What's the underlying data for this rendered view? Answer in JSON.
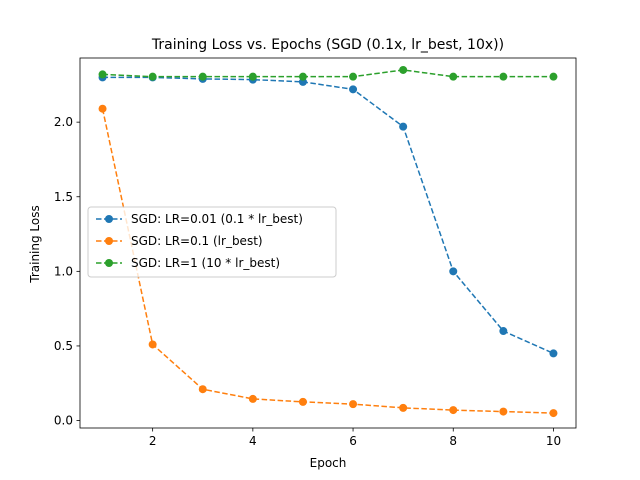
{
  "chart_data": {
    "type": "line",
    "title": "Training Loss vs. Epochs (SGD (0.1x, lr_best, 10x))",
    "xlabel": "Epoch",
    "ylabel": "Training Loss",
    "xlim": [
      0.55,
      10.45
    ],
    "ylim": [
      -0.05,
      2.43
    ],
    "xticks": [
      2,
      4,
      6,
      8,
      10
    ],
    "yticks": [
      0.0,
      0.5,
      1.0,
      1.5,
      2.0
    ],
    "ytick_labels": [
      "0.0",
      "0.5",
      "1.0",
      "1.5",
      "2.0"
    ],
    "grid": false,
    "legend_position": "center-left",
    "x": [
      1,
      2,
      3,
      4,
      5,
      6,
      7,
      8,
      9,
      10
    ],
    "series": [
      {
        "name": "SGD: LR=0.01 (0.1 * lr_best)",
        "color": "#1f77b4",
        "linestyle": "dashed",
        "marker": "circle",
        "values": [
          2.3,
          2.3,
          2.29,
          2.285,
          2.27,
          2.22,
          1.97,
          1.0,
          0.6,
          0.45
        ]
      },
      {
        "name": "SGD: LR=0.1 (lr_best)",
        "color": "#ff7f0e",
        "linestyle": "dashed",
        "marker": "circle",
        "values": [
          2.09,
          0.51,
          0.21,
          0.145,
          0.125,
          0.11,
          0.085,
          0.07,
          0.06,
          0.05
        ]
      },
      {
        "name": "SGD: LR=1 (10 * lr_best)",
        "color": "#2ca02c",
        "linestyle": "dashed",
        "marker": "circle",
        "values": [
          2.32,
          2.305,
          2.305,
          2.305,
          2.305,
          2.305,
          2.35,
          2.305,
          2.305,
          2.305
        ]
      }
    ]
  }
}
